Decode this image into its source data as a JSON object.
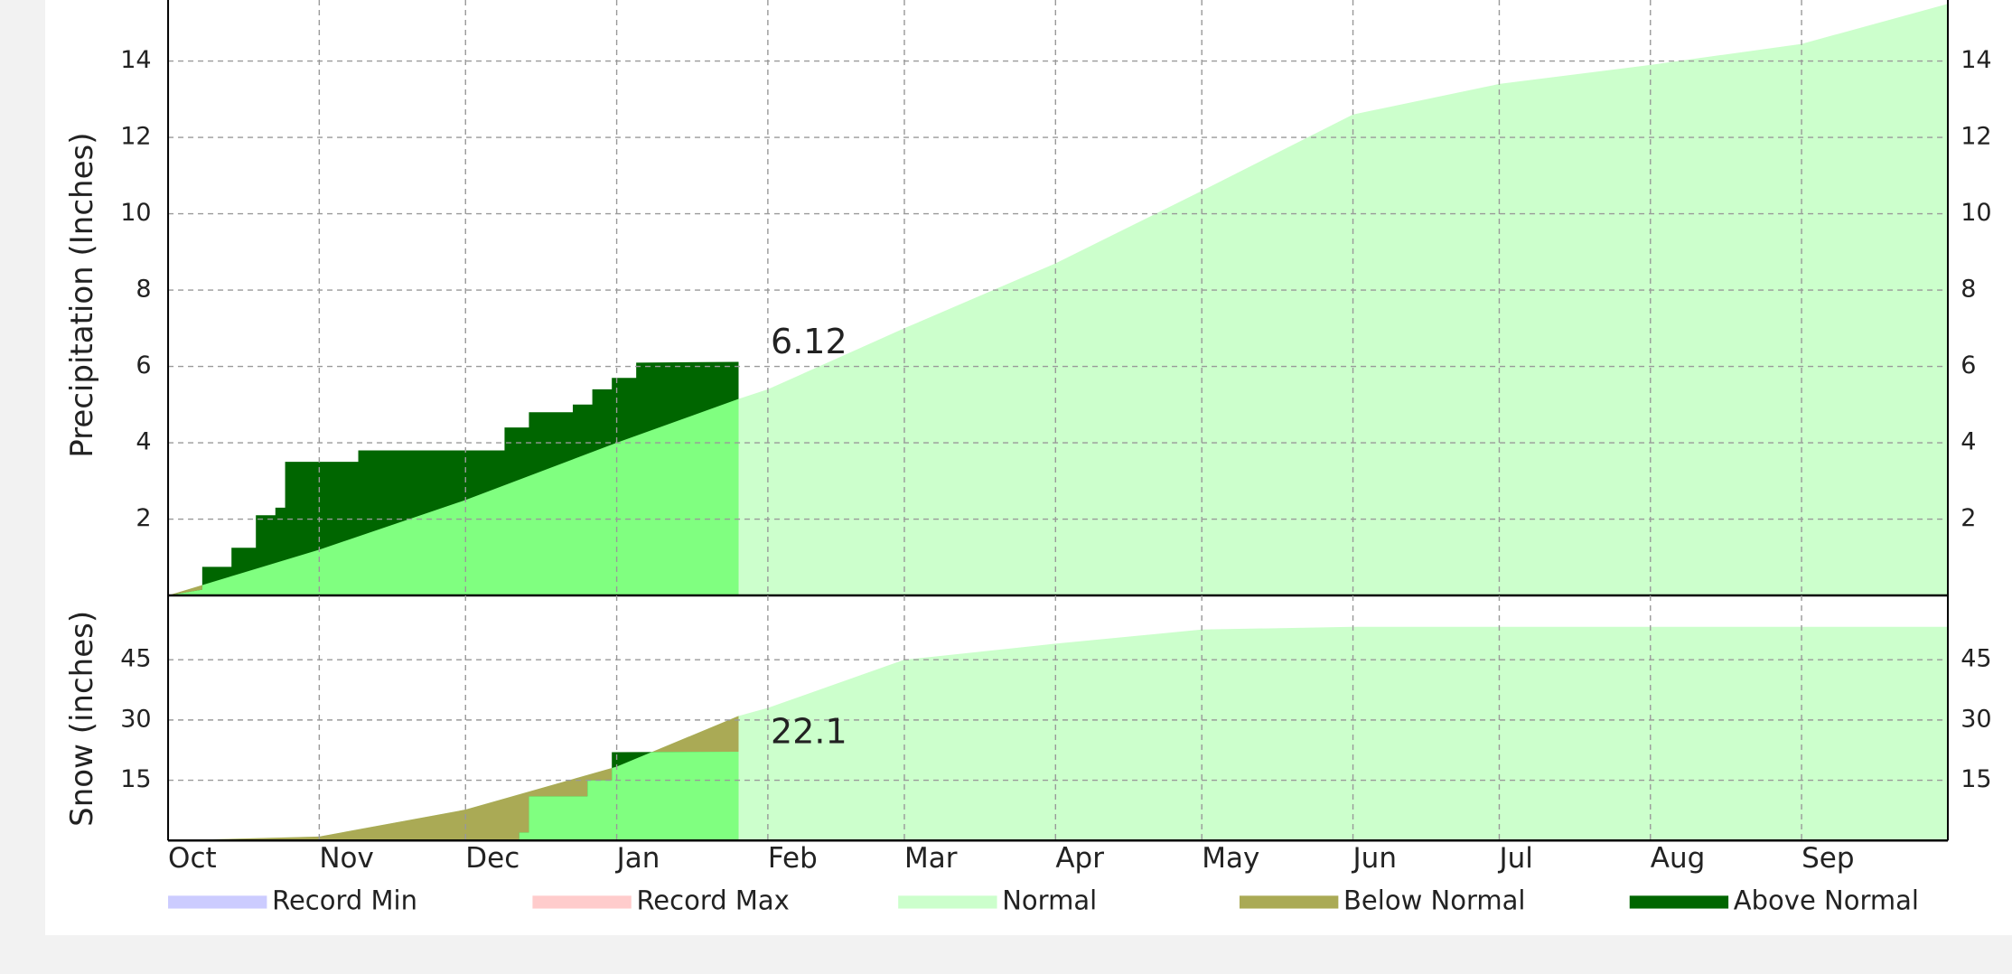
{
  "chart_data": [
    {
      "type": "area",
      "y_label": "Precipitation (Inches)",
      "ylim": [
        0,
        15.6
      ],
      "yticks": [
        2,
        4,
        6,
        8,
        10,
        12,
        14
      ],
      "grid": true,
      "series": [
        {
          "name": "Normal",
          "color": "#ccffcc",
          "x": [
            0,
            31,
            61,
            92,
            117,
            123,
            151,
            182,
            212,
            243,
            273,
            304,
            335,
            365
          ],
          "values": [
            0,
            1.2,
            2.5,
            4.0,
            5.15,
            5.4,
            7.0,
            8.7,
            10.6,
            12.6,
            13.4,
            13.9,
            14.45,
            15.5
          ]
        },
        {
          "color": "#80ff80",
          "x": [
            0,
            7,
            7,
            13,
            13,
            18,
            18,
            22,
            22,
            24,
            24,
            39,
            39,
            69,
            69,
            74,
            74,
            83,
            83,
            87,
            87,
            91,
            91,
            96,
            96,
            117
          ],
          "values": [
            0,
            0.15,
            0.75,
            0.75,
            1.25,
            1.25,
            2.1,
            2.1,
            2.3,
            2.3,
            3.5,
            3.5,
            3.8,
            3.8,
            4.4,
            4.4,
            4.8,
            4.8,
            5.0,
            5.0,
            5.4,
            5.4,
            5.7,
            5.7,
            6.1,
            6.12
          ]
        }
      ]
    },
    {
      "type": "area",
      "y_label": "Snow (inches)",
      "ylim": [
        0,
        61
      ],
      "yticks": [
        15,
        30,
        45
      ],
      "grid": true,
      "xlim": [
        0,
        365
      ],
      "xticks": [
        {
          "value": 0,
          "label": "Oct"
        },
        {
          "value": 31,
          "label": "Nov"
        },
        {
          "value": 61,
          "label": "Dec"
        },
        {
          "value": 92,
          "label": "Jan"
        },
        {
          "value": 123,
          "label": "Feb"
        },
        {
          "value": 151,
          "label": "Mar"
        },
        {
          "value": 182,
          "label": "Apr"
        },
        {
          "value": 212,
          "label": "May"
        },
        {
          "value": 243,
          "label": "Jun"
        },
        {
          "value": 273,
          "label": "Jul"
        },
        {
          "value": 304,
          "label": "Aug"
        },
        {
          "value": 335,
          "label": "Sep"
        }
      ],
      "series": [
        {
          "name": "Normal",
          "color": "#ccffcc",
          "x": [
            0,
            31,
            61,
            92,
            117,
            123,
            151,
            182,
            212,
            243,
            273,
            304,
            335,
            365
          ],
          "values": [
            0,
            1,
            7.7,
            18.4,
            31,
            33,
            45,
            49,
            52.5,
            53.2,
            53.2,
            53.2,
            53.2,
            53.2
          ]
        },
        {
          "color": "#80ff80",
          "x": [
            0,
            72,
            72,
            74,
            74,
            86,
            86,
            91,
            91,
            117
          ],
          "values": [
            0,
            0,
            2,
            2,
            11,
            11,
            15,
            15,
            22,
            22.1
          ]
        }
      ],
      "legend": [
        {
          "name": "Record Min",
          "color": "#ccccff"
        },
        {
          "name": "Record Max",
          "color": "#ffcccc"
        },
        {
          "name": "Normal",
          "color": "#ccffcc"
        },
        {
          "name": "Below Normal",
          "color": "#aaaa55"
        },
        {
          "name": "Above Normal",
          "color": "#006600"
        }
      ]
    }
  ]
}
